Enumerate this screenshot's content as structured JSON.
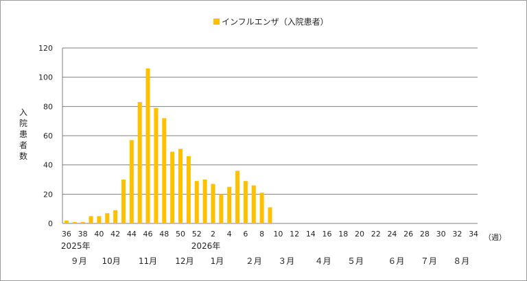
{
  "chart_data": {
    "type": "bar",
    "legend": {
      "label": "インフルエンザ（入院患者）",
      "color": "#FFC000",
      "placement": "top-center"
    },
    "ylabel": "入院患者数",
    "xunit": "（週）",
    "ylim": [
      0,
      120
    ],
    "yticks": [
      "0",
      "20",
      "40",
      "60",
      "80",
      "100",
      "120"
    ],
    "grid": true,
    "bar_color": "#FFC000",
    "weeks": [
      36,
      37,
      38,
      39,
      40,
      41,
      42,
      43,
      44,
      45,
      46,
      47,
      48,
      49,
      50,
      51,
      52,
      1,
      2,
      3,
      4,
      5,
      6,
      7,
      8,
      9,
      10,
      11,
      12,
      13,
      14,
      15,
      16,
      17,
      18,
      19,
      20,
      21,
      22,
      23,
      24,
      25,
      26,
      27,
      28,
      29,
      30,
      31,
      32,
      33,
      34
    ],
    "x_tick_labels": [
      "36",
      "38",
      "40",
      "42",
      "44",
      "46",
      "48",
      "50",
      "52",
      "2",
      "4",
      "6",
      "8",
      "10",
      "12",
      "14",
      "16",
      "18",
      "20",
      "22",
      "24",
      "26",
      "28",
      "30",
      "32",
      "34"
    ],
    "series": [
      {
        "values": [
          2,
          1,
          1,
          5,
          5,
          7,
          9,
          30,
          57,
          83,
          106,
          79,
          72,
          49,
          51,
          46,
          29,
          30,
          27,
          20,
          25,
          36,
          29,
          26,
          21,
          11
        ]
      }
    ],
    "year_labels": [
      {
        "text": "2025年",
        "week_index": 0
      },
      {
        "text": "2026年",
        "week_index": 16
      }
    ],
    "month_labels": [
      {
        "text": "９月",
        "week_index": 1.5
      },
      {
        "text": "10月",
        "week_index": 5.5
      },
      {
        "text": "11月",
        "week_index": 10
      },
      {
        "text": "12月",
        "week_index": 14.5
      },
      {
        "text": "1月",
        "week_index": 18.5
      },
      {
        "text": "２月",
        "week_index": 23
      },
      {
        "text": "３月",
        "week_index": 27
      },
      {
        "text": "４月",
        "week_index": 31.5
      },
      {
        "text": "５月",
        "week_index": 35.5
      },
      {
        "text": "６月",
        "week_index": 40.5
      },
      {
        "text": "７月",
        "week_index": 44.5
      },
      {
        "text": "８月",
        "week_index": 48.5
      }
    ]
  }
}
